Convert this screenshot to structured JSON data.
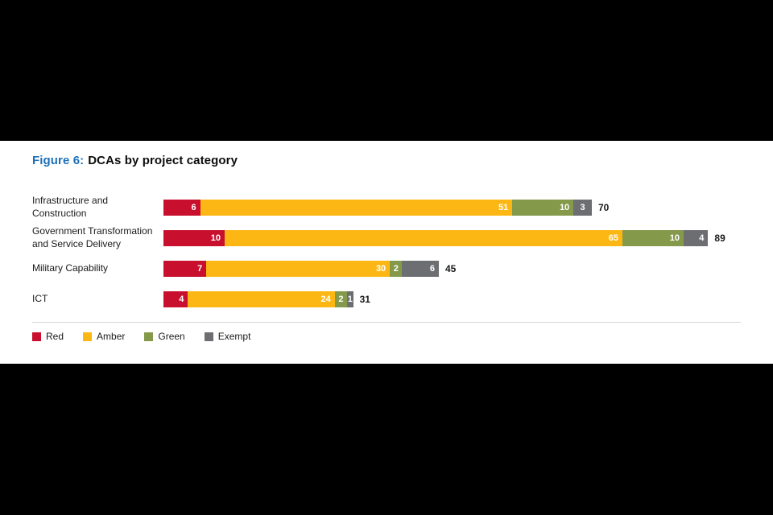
{
  "figure": {
    "label": "Figure 6:",
    "title": "DCAs by project category"
  },
  "chart_data": {
    "type": "bar",
    "orientation": "horizontal",
    "stacked": true,
    "title": "Figure 6: DCAs by project category",
    "categories": [
      "Infrastructure and Construction",
      "Government Transformation and Service Delivery",
      "Military Capability",
      "ICT"
    ],
    "series": [
      {
        "name": "Red",
        "color": "#c8102e",
        "values": [
          6,
          10,
          7,
          4
        ]
      },
      {
        "name": "Amber",
        "color": "#fdb714",
        "values": [
          51,
          65,
          30,
          24
        ]
      },
      {
        "name": "Green",
        "color": "#85994b",
        "values": [
          10,
          10,
          2,
          2
        ]
      },
      {
        "name": "Exempt",
        "color": "#6d6e71",
        "values": [
          3,
          4,
          6,
          1
        ]
      }
    ],
    "totals": [
      70,
      89,
      45,
      31
    ],
    "legend": [
      "Red",
      "Amber",
      "Green",
      "Exempt"
    ],
    "legend_position": "bottom",
    "grid": false,
    "value_labels": "inside-segments",
    "total_labels": "end-of-bar"
  }
}
